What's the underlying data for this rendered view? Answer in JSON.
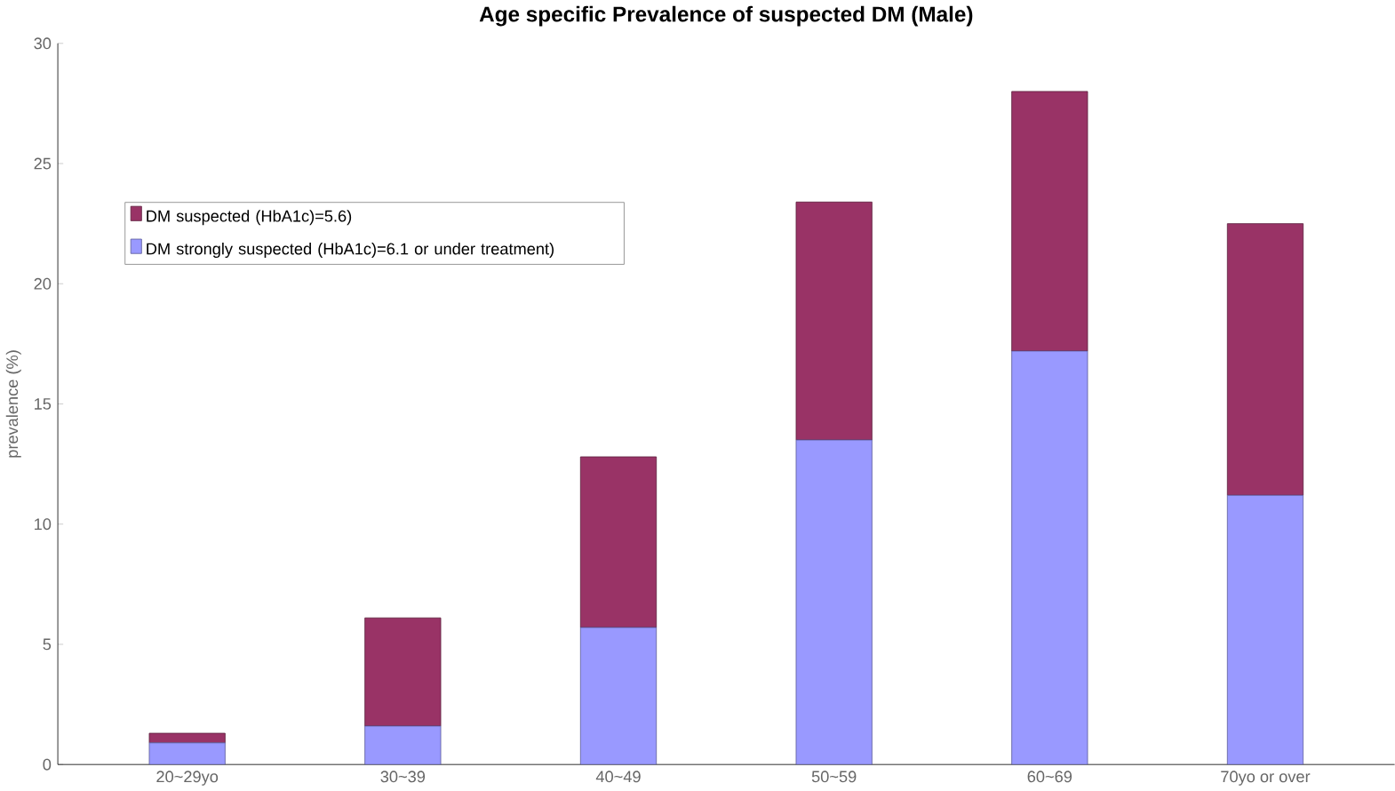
{
  "chart_data": {
    "type": "bar",
    "stacked": true,
    "title": "Age specific Prevalence of suspected DM (Male)",
    "ylabel": "prevalence (%)",
    "categories": [
      "20~29yo",
      "30~39",
      "40~49",
      "50~59",
      "60~69",
      "70yo or over"
    ],
    "series": [
      {
        "name": "DM strongly suspected (HbA1c)=6.1 or under treatment)",
        "color": "#9999ff",
        "values": [
          0.9,
          1.6,
          5.7,
          13.5,
          17.2,
          11.2
        ]
      },
      {
        "name": "DM suspected (HbA1c)=5.6)",
        "color": "#993366",
        "values": [
          0.4,
          4.5,
          7.1,
          9.9,
          10.8,
          11.3
        ]
      }
    ],
    "ylim": [
      0,
      30
    ],
    "yticks": [
      0,
      5,
      10,
      15,
      20,
      25,
      30
    ],
    "grid": false,
    "legend": "top left"
  }
}
